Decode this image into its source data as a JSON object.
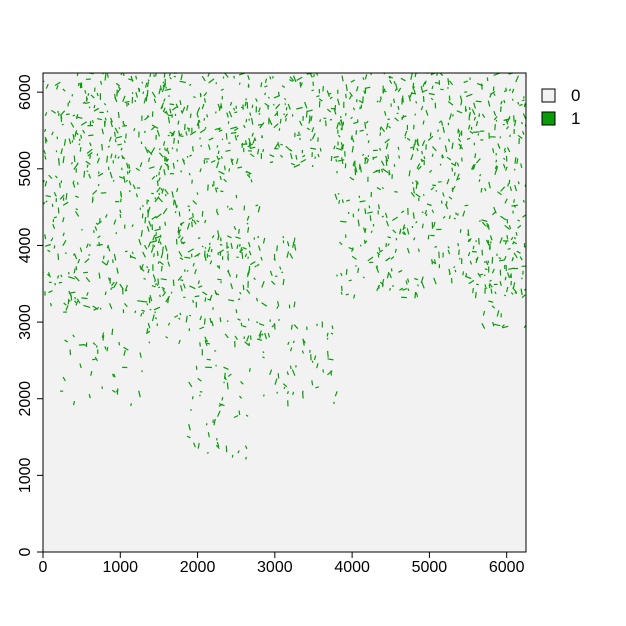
{
  "chart_data": {
    "type": "heatmap",
    "title": "",
    "xlabel": "",
    "ylabel": "",
    "xlim": [
      0,
      6250
    ],
    "ylim": [
      0,
      6250
    ],
    "x_ticks": [
      0,
      1000,
      2000,
      3000,
      4000,
      5000,
      6000
    ],
    "y_ticks": [
      0,
      1000,
      2000,
      3000,
      4000,
      5000,
      6000
    ],
    "x_tick_labels": [
      "0",
      "1000",
      "2000",
      "3000",
      "4000",
      "5000",
      "6000"
    ],
    "y_tick_labels": [
      "0",
      "1000",
      "2000",
      "3000",
      "4000",
      "5000",
      "6000"
    ],
    "legend_position": "right-top",
    "legend": [
      {
        "label": "0",
        "color": "#f2f2f2"
      },
      {
        "label": "1",
        "color": "#0a9a0a"
      }
    ],
    "description_of_cells": "binary raster; value 1 forms dendritic stream-network pattern",
    "network_regions": [
      {
        "name": "top-band",
        "x": [
          0,
          6250
        ],
        "y": [
          5000,
          6250
        ],
        "density": 0.85
      },
      {
        "name": "left-lobe",
        "x": [
          0,
          1600
        ],
        "y": [
          3050,
          5000
        ],
        "density": 0.6
      },
      {
        "name": "center-lobe",
        "x": [
          1400,
          2800
        ],
        "y": [
          3800,
          5000
        ],
        "density": 0.55
      },
      {
        "name": "center-branch",
        "x": [
          1300,
          3300
        ],
        "y": [
          2700,
          4100
        ],
        "density": 0.55
      },
      {
        "name": "center-stem",
        "x": [
          1900,
          2700
        ],
        "y": [
          1100,
          2700
        ],
        "density": 0.35
      },
      {
        "name": "right-branch",
        "x": [
          2800,
          3900
        ],
        "y": [
          1900,
          3000
        ],
        "density": 0.35
      },
      {
        "name": "lower-left-branch",
        "x": [
          250,
          1400
        ],
        "y": [
          1900,
          2900
        ],
        "density": 0.3
      },
      {
        "name": "right-lobe",
        "x": [
          3800,
          6250
        ],
        "y": [
          3300,
          5000
        ],
        "density": 0.6
      },
      {
        "name": "far-right-lobe",
        "x": [
          5600,
          6250
        ],
        "y": [
          2850,
          4300
        ],
        "density": 0.45
      }
    ]
  }
}
